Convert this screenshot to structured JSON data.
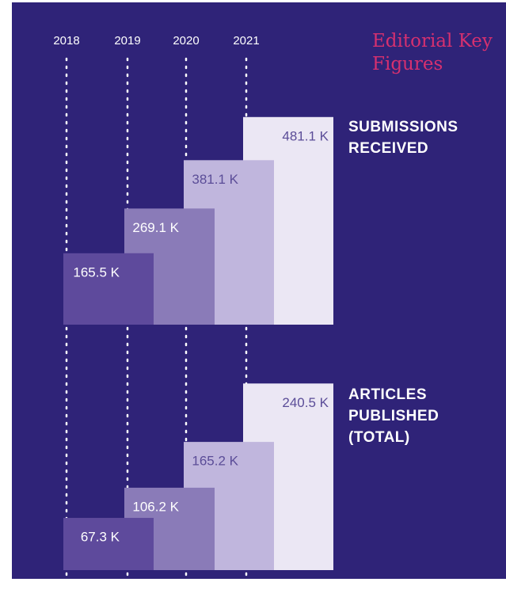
{
  "header": {
    "title": "Editorial Key Figures"
  },
  "chart_data": [
    {
      "type": "bar",
      "title": "SUBMISSIONS RECEIVED",
      "categories": [
        "2018",
        "2019",
        "2020",
        "2021"
      ],
      "values": [
        165.5,
        269.1,
        381.1,
        481.1
      ],
      "value_labels": [
        "165.5 K",
        "269.1 K",
        "381.1 K",
        "481.1 K"
      ],
      "colors": [
        "#5e4a9c",
        "#8a7bb8",
        "#c0b6dd",
        "#ebe7f4"
      ]
    },
    {
      "type": "bar",
      "title": "ARTICLES PUBLISHED (TOTAL)",
      "values": [
        67.3,
        106.2,
        165.2,
        240.5
      ],
      "value_labels": [
        "67.3 K",
        "106.2 K",
        "165.2 K",
        "240.5 K"
      ],
      "colors": [
        "#5e4a9c",
        "#8a7bb8",
        "#c0b6dd",
        "#ebe7f4"
      ]
    }
  ]
}
